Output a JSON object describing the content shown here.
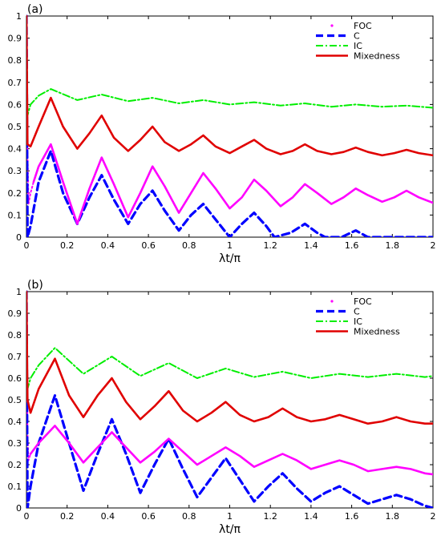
{
  "chart_data": [
    {
      "panel_label": "(a)",
      "type": "line",
      "xlabel": "λt/π",
      "ylabel": "",
      "xlim": [
        0,
        2
      ],
      "ylim": [
        0,
        1
      ],
      "x_ticks": [
        "0",
        "0.2",
        "0.4",
        "0.6",
        "0.8",
        "1",
        "1.2",
        "1.4",
        "1.6",
        "1.8",
        "2"
      ],
      "y_ticks": [
        "0",
        "0.1",
        "0.2",
        "0.3",
        "0.4",
        "0.5",
        "0.6",
        "0.7",
        "0.8",
        "0.9",
        "1"
      ],
      "legend_position": "top-right",
      "series": [
        {
          "name": "FOC",
          "color": "#ff00ff",
          "style": "dotted-marker",
          "x": [
            0,
            0.005,
            0.01,
            0.02,
            0.035
          ],
          "y": [
            1.0,
            0.4,
            0.15,
            0.2,
            0.25
          ]
        },
        {
          "name": "C",
          "color": "#0000ff",
          "style": "dashed",
          "x": [
            0,
            0.005,
            0.02,
            0.06,
            0.12,
            0.18,
            0.25,
            0.31,
            0.37,
            0.43,
            0.5,
            0.56,
            0.62,
            0.68,
            0.75,
            0.81,
            0.87,
            0.93,
            1.0,
            1.06,
            1.12,
            1.18,
            1.22,
            1.3,
            1.37,
            1.43,
            1.47,
            1.55,
            1.62,
            1.68,
            1.75,
            2.0
          ],
          "y": [
            1.0,
            0.0,
            0.05,
            0.25,
            0.39,
            0.2,
            0.06,
            0.18,
            0.28,
            0.17,
            0.06,
            0.15,
            0.21,
            0.12,
            0.03,
            0.1,
            0.15,
            0.08,
            0.0,
            0.06,
            0.11,
            0.05,
            0.0,
            0.02,
            0.06,
            0.02,
            0.0,
            0.0,
            0.03,
            0.0,
            0.0,
            0.0
          ]
        },
        {
          "name": "IC",
          "color": "#00ee00",
          "style": "dash-dot",
          "x": [
            0,
            0.005,
            0.02,
            0.06,
            0.12,
            0.25,
            0.37,
            0.5,
            0.62,
            0.75,
            0.87,
            1.0,
            1.12,
            1.25,
            1.37,
            1.5,
            1.62,
            1.75,
            1.87,
            2.0
          ],
          "y": [
            1.0,
            0.55,
            0.6,
            0.64,
            0.67,
            0.62,
            0.645,
            0.615,
            0.63,
            0.605,
            0.62,
            0.6,
            0.61,
            0.595,
            0.605,
            0.59,
            0.6,
            0.59,
            0.595,
            0.585
          ]
        },
        {
          "name": "Mixedness",
          "color": "#e00000",
          "style": "solid",
          "x": [
            0,
            0.005,
            0.02,
            0.06,
            0.12,
            0.18,
            0.25,
            0.31,
            0.37,
            0.43,
            0.5,
            0.56,
            0.62,
            0.68,
            0.75,
            0.81,
            0.87,
            0.93,
            1.0,
            1.06,
            1.12,
            1.18,
            1.25,
            1.31,
            1.37,
            1.43,
            1.5,
            1.56,
            1.62,
            1.68,
            1.75,
            1.81,
            1.87,
            1.93,
            2.0
          ],
          "y": [
            1.0,
            0.42,
            0.41,
            0.5,
            0.63,
            0.5,
            0.4,
            0.47,
            0.55,
            0.45,
            0.39,
            0.44,
            0.5,
            0.43,
            0.39,
            0.42,
            0.46,
            0.41,
            0.38,
            0.41,
            0.44,
            0.4,
            0.375,
            0.39,
            0.42,
            0.39,
            0.375,
            0.385,
            0.405,
            0.385,
            0.37,
            0.38,
            0.395,
            0.38,
            0.37
          ]
        },
        {
          "name": "",
          "color": "#ff00ff",
          "style": "solid",
          "x": [
            0.035,
            0.06,
            0.12,
            0.18,
            0.25,
            0.31,
            0.37,
            0.43,
            0.5,
            0.56,
            0.62,
            0.68,
            0.75,
            0.81,
            0.87,
            0.93,
            1.0,
            1.06,
            1.12,
            1.18,
            1.25,
            1.31,
            1.37,
            1.43,
            1.5,
            1.56,
            1.62,
            1.68,
            1.75,
            1.81,
            1.87,
            1.93,
            2.0
          ],
          "y": [
            0.25,
            0.32,
            0.42,
            0.25,
            0.06,
            0.22,
            0.36,
            0.24,
            0.09,
            0.2,
            0.32,
            0.23,
            0.11,
            0.2,
            0.29,
            0.22,
            0.13,
            0.18,
            0.26,
            0.21,
            0.14,
            0.18,
            0.24,
            0.2,
            0.15,
            0.18,
            0.22,
            0.19,
            0.16,
            0.18,
            0.21,
            0.18,
            0.155
          ]
        }
      ]
    },
    {
      "panel_label": "(b)",
      "type": "line",
      "xlabel": "λt/π",
      "ylabel": "",
      "xlim": [
        0,
        2
      ],
      "ylim": [
        0,
        1
      ],
      "x_ticks": [
        "0",
        "0.2",
        "0.4",
        "0.6",
        "0.8",
        "1",
        "1.2",
        "1.4",
        "1.6",
        "1.8",
        "2"
      ],
      "y_ticks": [
        "0",
        "0.1",
        "0.2",
        "0.3",
        "0.4",
        "0.5",
        "0.6",
        "0.7",
        "0.8",
        "0.9",
        "1"
      ],
      "legend_position": "top-right",
      "series": [
        {
          "name": "FOC",
          "color": "#ff00ff",
          "style": "dotted-marker",
          "x": [
            0,
            0.005,
            0.01,
            0.02
          ],
          "y": [
            1.0,
            0.35,
            0.22,
            0.25
          ]
        },
        {
          "name": "C",
          "color": "#0000ff",
          "style": "dashed",
          "x": [
            0,
            0.005,
            0.02,
            0.06,
            0.14,
            0.21,
            0.28,
            0.35,
            0.42,
            0.49,
            0.56,
            0.63,
            0.7,
            0.77,
            0.84,
            0.91,
            0.98,
            1.05,
            1.12,
            1.19,
            1.26,
            1.33,
            1.4,
            1.47,
            1.54,
            1.61,
            1.68,
            1.75,
            1.82,
            1.89,
            1.96,
            2.0
          ],
          "y": [
            1.0,
            0.0,
            0.1,
            0.3,
            0.52,
            0.3,
            0.08,
            0.25,
            0.41,
            0.25,
            0.07,
            0.2,
            0.32,
            0.18,
            0.05,
            0.14,
            0.23,
            0.13,
            0.03,
            0.1,
            0.16,
            0.09,
            0.03,
            0.07,
            0.1,
            0.06,
            0.02,
            0.04,
            0.06,
            0.04,
            0.01,
            0.0
          ]
        },
        {
          "name": "IC",
          "color": "#00ee00",
          "style": "dash-dot",
          "x": [
            0,
            0.005,
            0.02,
            0.06,
            0.14,
            0.28,
            0.42,
            0.56,
            0.7,
            0.84,
            0.98,
            1.12,
            1.26,
            1.4,
            1.54,
            1.68,
            1.82,
            1.96,
            2.0
          ],
          "y": [
            1.0,
            0.55,
            0.6,
            0.66,
            0.74,
            0.62,
            0.7,
            0.61,
            0.67,
            0.6,
            0.645,
            0.605,
            0.63,
            0.6,
            0.62,
            0.605,
            0.62,
            0.605,
            0.61
          ]
        },
        {
          "name": "Mixedness",
          "color": "#e00000",
          "style": "solid",
          "x": [
            0,
            0.005,
            0.02,
            0.06,
            0.14,
            0.21,
            0.28,
            0.35,
            0.42,
            0.49,
            0.56,
            0.63,
            0.7,
            0.77,
            0.84,
            0.91,
            0.98,
            1.05,
            1.12,
            1.19,
            1.26,
            1.33,
            1.4,
            1.47,
            1.54,
            1.61,
            1.68,
            1.75,
            1.82,
            1.89,
            1.96,
            2.0
          ],
          "y": [
            1.0,
            0.5,
            0.44,
            0.55,
            0.69,
            0.52,
            0.42,
            0.52,
            0.6,
            0.49,
            0.41,
            0.47,
            0.54,
            0.45,
            0.4,
            0.44,
            0.49,
            0.43,
            0.4,
            0.42,
            0.46,
            0.42,
            0.4,
            0.41,
            0.43,
            0.41,
            0.39,
            0.4,
            0.42,
            0.4,
            0.39,
            0.39
          ]
        },
        {
          "name": "",
          "color": "#ff00ff",
          "style": "solid",
          "x": [
            0.02,
            0.06,
            0.14,
            0.21,
            0.28,
            0.35,
            0.42,
            0.49,
            0.56,
            0.63,
            0.7,
            0.77,
            0.84,
            0.91,
            0.98,
            1.05,
            1.12,
            1.19,
            1.26,
            1.33,
            1.4,
            1.47,
            1.54,
            1.61,
            1.68,
            1.75,
            1.82,
            1.89,
            1.96,
            2.0
          ],
          "y": [
            0.25,
            0.3,
            0.38,
            0.3,
            0.21,
            0.28,
            0.35,
            0.28,
            0.21,
            0.26,
            0.32,
            0.26,
            0.2,
            0.24,
            0.28,
            0.24,
            0.19,
            0.22,
            0.25,
            0.22,
            0.18,
            0.2,
            0.22,
            0.2,
            0.17,
            0.18,
            0.19,
            0.18,
            0.16,
            0.155
          ]
        }
      ]
    }
  ]
}
